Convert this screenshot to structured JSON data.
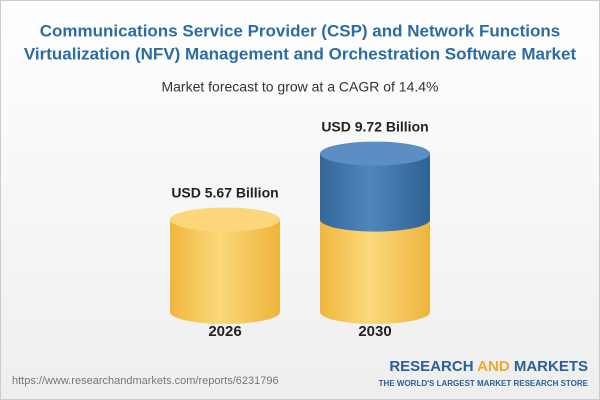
{
  "chart_data": {
    "type": "cylinder",
    "title_lines": [
      "Communications Service Provider (CSP) and Network Functions",
      "Virtualization (NFV) Management and Orchestration Software Market"
    ],
    "subtitle": "Market forecast to grow at a CAGR of 14.4%",
    "categories": [
      "2026",
      "2030"
    ],
    "values": [
      5.67,
      9.72
    ],
    "value_labels": [
      "USD 5.67 Billion",
      "USD 9.72 Billion"
    ],
    "color": "#f5c24e",
    "growth_color": "#3f75aa"
  },
  "footer": {
    "url": "https://www.researchandmarkets.com/reports/6231796",
    "brand": [
      "RESEARCH",
      "AND",
      "MARKETS"
    ],
    "tagline": "THE WORLD'S LARGEST MARKET RESEARCH STORE"
  }
}
